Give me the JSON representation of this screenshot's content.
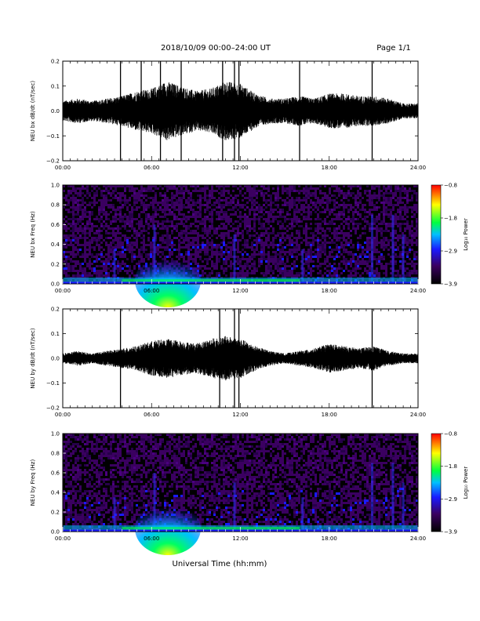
{
  "header": {
    "title": "2018/10/09  00:00–24:00 UT",
    "page": "Page 1/1"
  },
  "x_axis_title": "Universal Time (hh:mm)",
  "chart_data": [
    {
      "type": "line",
      "series": [
        {
          "name": "NEU bx dB/dt"
        }
      ],
      "ylabel": "NEU bx dB/dt (nT/sec)",
      "ylim": [
        -0.2,
        0.2
      ],
      "yticks": [
        "0.2",
        "0.1",
        "0.0",
        "−0.1",
        "−0.2"
      ],
      "xlim": [
        "00:00",
        "24:00"
      ],
      "xticks": [
        "00:00",
        "06:00",
        "12:00",
        "18:00",
        "24:00"
      ],
      "envelope": {
        "hours": [
          0,
          1,
          2,
          3,
          4,
          5,
          6,
          7,
          8,
          9,
          10,
          11,
          12,
          13,
          14,
          15,
          16,
          17,
          18,
          19,
          20,
          21,
          22,
          23,
          24
        ],
        "amplitude": [
          0.04,
          0.05,
          0.04,
          0.05,
          0.06,
          0.08,
          0.09,
          0.12,
          0.1,
          0.08,
          0.09,
          0.12,
          0.11,
          0.07,
          0.05,
          0.05,
          0.06,
          0.05,
          0.07,
          0.07,
          0.06,
          0.06,
          0.05,
          0.03,
          0.03
        ]
      },
      "spikes_hours": [
        3.9,
        5.3,
        6.6,
        8.0,
        10.8,
        11.6,
        11.9,
        16.0,
        20.9
      ]
    },
    {
      "type": "heatmap",
      "ylabel": "NEU bx Freq (Hz)",
      "ylim": [
        0.0,
        1.0
      ],
      "yticks": [
        "1.0",
        "0.8",
        "0.6",
        "0.4",
        "0.2",
        "0.0"
      ],
      "xlim": [
        "00:00",
        "24:00"
      ],
      "xticks": [
        "00:00",
        "06:00",
        "12:00",
        "18:00",
        "24:00"
      ],
      "colorbar": {
        "label": "Log₁₀ Power",
        "range": [
          -3.9,
          -0.8
        ],
        "ticks": [
          "−0.8",
          "−1.8",
          "−2.9",
          "−3.9"
        ]
      },
      "colors": [
        "#000000",
        "#3a0060",
        "#1a1aff",
        "#00c0ff",
        "#00ff40",
        "#ffff00",
        "#ff0000"
      ]
    },
    {
      "type": "line",
      "series": [
        {
          "name": "NEU by dB/dt"
        }
      ],
      "ylabel": "NEU by dB/dt (nT/sec)",
      "ylim": [
        -0.2,
        0.2
      ],
      "yticks": [
        "0.2",
        "0.1",
        "0.0",
        "−0.1",
        "−0.2"
      ],
      "xlim": [
        "00:00",
        "24:00"
      ],
      "xticks": [
        "00:00",
        "06:00",
        "12:00",
        "18:00",
        "24:00"
      ],
      "envelope": {
        "hours": [
          0,
          1,
          2,
          3,
          4,
          5,
          6,
          7,
          8,
          9,
          10,
          11,
          12,
          13,
          14,
          15,
          16,
          17,
          18,
          19,
          20,
          21,
          22,
          23,
          24
        ],
        "amplitude": [
          0.02,
          0.03,
          0.02,
          0.03,
          0.04,
          0.05,
          0.07,
          0.08,
          0.07,
          0.06,
          0.08,
          0.09,
          0.08,
          0.05,
          0.03,
          0.02,
          0.03,
          0.04,
          0.06,
          0.05,
          0.04,
          0.05,
          0.03,
          0.02,
          0.02
        ]
      },
      "spikes_hours": [
        3.9,
        10.6,
        11.6,
        11.9,
        20.9
      ]
    },
    {
      "type": "heatmap",
      "ylabel": "NEU by Freq (Hz)",
      "ylim": [
        0.0,
        1.0
      ],
      "yticks": [
        "1.0",
        "0.8",
        "0.6",
        "0.4",
        "0.2",
        "0.0"
      ],
      "xlim": [
        "00:00",
        "24:00"
      ],
      "xticks": [
        "00:00",
        "06:00",
        "12:00",
        "18:00",
        "24:00"
      ],
      "colorbar": {
        "label": "Log₁₀ Power",
        "range": [
          -3.9,
          -0.8
        ],
        "ticks": [
          "−0.8",
          "−1.8",
          "−2.9",
          "−3.9"
        ]
      },
      "colors": [
        "#000000",
        "#3a0060",
        "#1a1aff",
        "#00c0ff",
        "#00ff40",
        "#ffff00",
        "#ff0000"
      ]
    }
  ]
}
